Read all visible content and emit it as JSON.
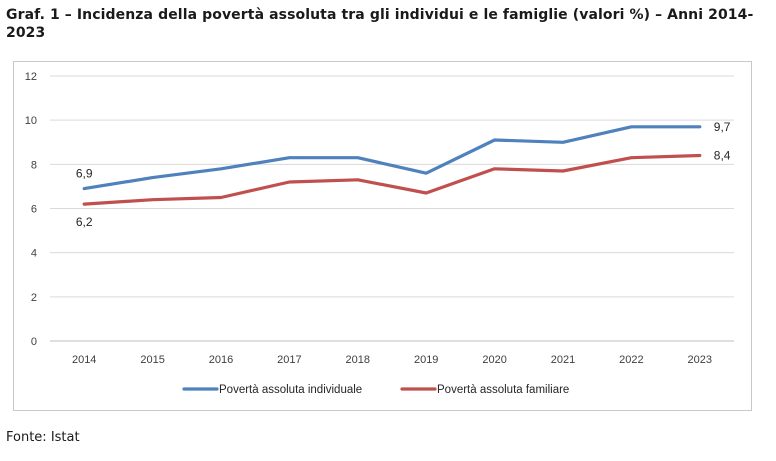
{
  "title": "Graf. 1 – Incidenza della povertà assoluta tra gli individui e le famiglie (valori %) – Anni 2014-2023",
  "source": "Fonte: Istat",
  "colors": {
    "individual": "#4f81bd",
    "family": "#c0504d",
    "grid": "#d9d9d9",
    "axis": "#bfbfbf"
  },
  "chart_data": {
    "type": "line",
    "title": "Graf. 1 – Incidenza della povertà assoluta tra gli individui e le famiglie (valori %) – Anni 2014-2023",
    "xlabel": "",
    "ylabel": "",
    "categories": [
      "2014",
      "2015",
      "2016",
      "2017",
      "2018",
      "2019",
      "2020",
      "2021",
      "2022",
      "2023"
    ],
    "y_ticks": [
      "0",
      "2",
      "4",
      "6",
      "8",
      "10",
      "12"
    ],
    "ylim": [
      0,
      12
    ],
    "grid": true,
    "legend_position": "bottom",
    "series": [
      {
        "name": "Povertà assoluta individuale",
        "color": "#4f81bd",
        "values": [
          6.9,
          7.4,
          7.8,
          8.3,
          8.3,
          7.6,
          9.1,
          9.0,
          9.7,
          9.7
        ]
      },
      {
        "name": "Povertà assoluta familiare",
        "color": "#c0504d",
        "values": [
          6.2,
          6.4,
          6.5,
          7.2,
          7.3,
          6.7,
          7.8,
          7.7,
          8.3,
          8.4
        ]
      }
    ],
    "data_labels": [
      {
        "series": 0,
        "index": 0,
        "text": "6,9"
      },
      {
        "series": 1,
        "index": 0,
        "text": "6,2"
      },
      {
        "series": 0,
        "index": 9,
        "text": "9,7"
      },
      {
        "series": 1,
        "index": 9,
        "text": "8,4"
      }
    ]
  }
}
